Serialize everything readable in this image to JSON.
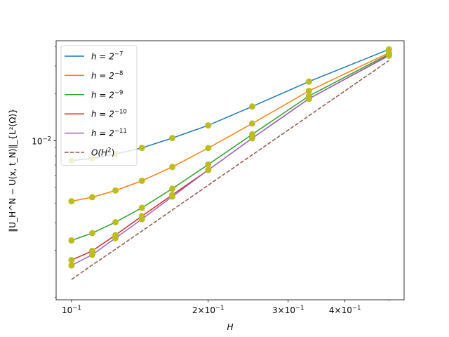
{
  "chart_data": {
    "type": "line",
    "title": "",
    "xlabel": "H",
    "ylabel": "‖U_H^N − U(x, t_N)‖_{L²(Ω)}",
    "xscale": "log",
    "yscale": "log",
    "xlim": [
      0.0925,
      0.54
    ],
    "ylim": [
      0.000965,
      0.0435
    ],
    "x_ticks": [
      {
        "value": 0.1,
        "base": "10",
        "exp": "−1"
      },
      {
        "value": 0.2,
        "base": "2×10",
        "exp": "−1"
      },
      {
        "value": 0.3,
        "base": "3×10",
        "exp": "−1"
      },
      {
        "value": 0.4,
        "base": "4×10",
        "exp": "−1"
      }
    ],
    "y_ticks": [
      {
        "value": 0.01,
        "base": "10",
        "exp": "−2"
      }
    ],
    "legend_position": "upper-left",
    "marker_color": "#bcbd22",
    "x": [
      0.1,
      0.1111,
      0.125,
      0.1429,
      0.1667,
      0.2,
      0.25,
      0.3333,
      0.5
    ],
    "series": [
      {
        "name": "h = 2",
        "sup": "−7",
        "color": "#1f77b4",
        "dashed": false,
        "markers": true,
        "values": [
          0.00746,
          0.00771,
          0.00822,
          0.009,
          0.0104,
          0.01253,
          0.01655,
          0.02385,
          0.0383
        ]
      },
      {
        "name": "h = 2",
        "sup": "−8",
        "color": "#ff7f0e",
        "dashed": false,
        "markers": true,
        "values": [
          0.00411,
          0.00436,
          0.00481,
          0.00555,
          0.0068,
          0.00898,
          0.01288,
          0.0208,
          0.0364
        ]
      },
      {
        "name": "h = 2",
        "sup": "−9",
        "color": "#2ca02c",
        "dashed": false,
        "markers": true,
        "values": [
          0.00231,
          0.00257,
          0.00302,
          0.00373,
          0.00494,
          0.00705,
          0.01098,
          0.0193,
          0.0357
        ]
      },
      {
        "name": "h = 2",
        "sup": "−10",
        "color": "#d62728",
        "dashed": false,
        "markers": true,
        "values": [
          0.00173,
          0.00198,
          0.0025,
          0.0033,
          0.00451,
          0.0065,
          0.01037,
          0.01855,
          0.0351
        ]
      },
      {
        "name": "h = 2",
        "sup": "−11",
        "color": "#9467bd",
        "dashed": false,
        "markers": true,
        "values": [
          0.0016,
          0.00187,
          0.00239,
          0.00316,
          0.0044,
          0.0065,
          0.01037,
          0.01855,
          0.0349
        ]
      },
      {
        "name": "O(H",
        "sup": "2",
        "suffix": ")",
        "color": "#8c564b",
        "dashed": true,
        "markers": false,
        "values": [
          0.0013,
          0.00161,
          0.00203,
          0.00265,
          0.00361,
          0.0052,
          0.00812,
          0.01444,
          0.0325
        ]
      }
    ]
  }
}
